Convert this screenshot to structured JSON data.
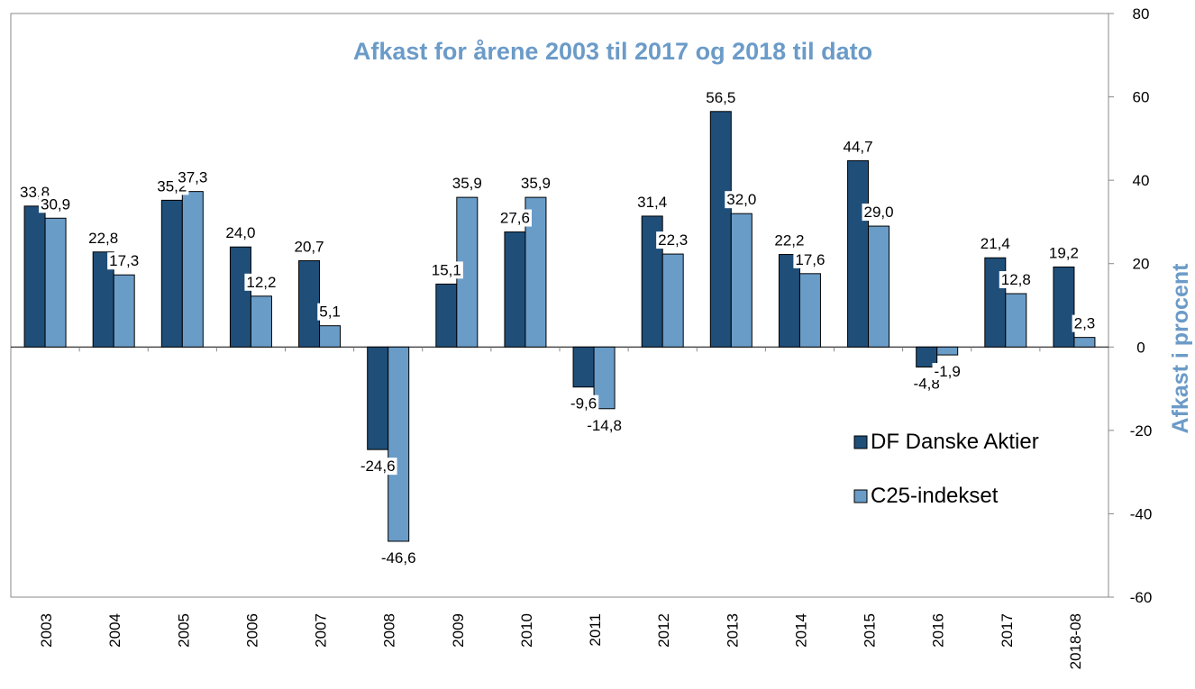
{
  "chart_data": {
    "type": "bar",
    "title": "Afkast for årene 2003 til 2017 og 2018 til dato",
    "y_label": "Afkast i procent",
    "categories": [
      "2003",
      "2004",
      "2005",
      "2006",
      "2007",
      "2008",
      "2009",
      "2010",
      "2011",
      "2012",
      "2013",
      "2014",
      "2015",
      "2016",
      "2017",
      "2018-08"
    ],
    "series": [
      {
        "name": "DF Danske Aktier",
        "color": "#1f4e79",
        "values": [
          33.8,
          22.8,
          35.2,
          24.0,
          20.7,
          -24.6,
          15.1,
          27.6,
          -9.6,
          31.4,
          56.5,
          22.2,
          44.7,
          -4.8,
          21.4,
          19.2
        ],
        "value_labels": [
          "33,8",
          "22,8",
          "35,2",
          "24,0",
          "20,7",
          "-24,6",
          "15,1",
          "27,6",
          "-9,6",
          "31,4",
          "56,5",
          "22,2",
          "44,7",
          "-4,8",
          "21,4",
          "19,2"
        ]
      },
      {
        "name": "C25-indekset",
        "color": "#6a9cc8",
        "values": [
          30.9,
          17.3,
          37.3,
          12.2,
          5.1,
          -46.6,
          35.9,
          35.9,
          -14.8,
          22.3,
          32.0,
          17.6,
          29.0,
          -1.9,
          12.8,
          2.3
        ],
        "value_labels": [
          "30,9",
          "17,3",
          "37,3",
          "12,2",
          "5,1",
          "-46,6",
          "35,9",
          "35,9",
          "-14,8",
          "22,3",
          "32,0",
          "17,6",
          "29,0",
          "-1,9",
          "12,8",
          "2,3"
        ]
      }
    ],
    "ylim": [
      -60,
      80
    ],
    "yticks": [
      -60,
      -40,
      -20,
      0,
      20,
      40,
      60,
      80
    ],
    "grid": false,
    "legend": "right"
  }
}
